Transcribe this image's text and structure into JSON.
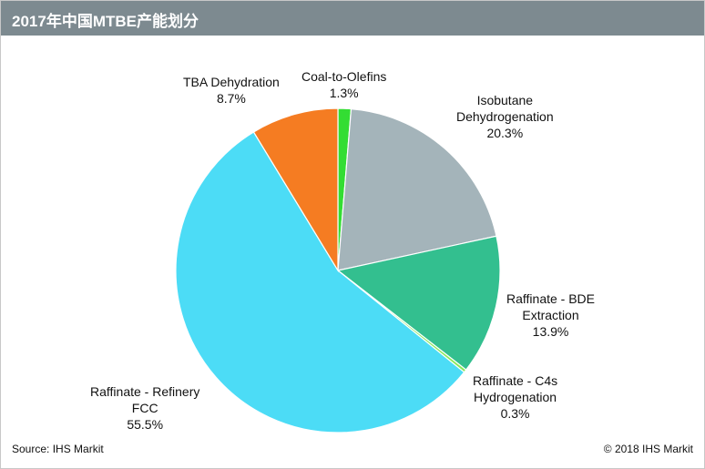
{
  "title": "2017年中国MTBE产能划分",
  "source": "Source: IHS Markit",
  "copyright": "© 2018 IHS Markit",
  "chart_data": {
    "type": "pie",
    "start_angle_deg": 0,
    "direction": "clockwise",
    "slices": [
      {
        "name": "Coal-to-Olefins",
        "value": 1.3,
        "value_label": "1.3%",
        "color": "#33dd33"
      },
      {
        "name": "Isobutane Dehydrogenation",
        "value": 20.3,
        "value_label": "20.3%",
        "color": "#a4b4ba"
      },
      {
        "name": "Raffinate - BDE Extraction",
        "value": 13.9,
        "value_label": "13.9%",
        "color": "#33bf8f"
      },
      {
        "name": "Raffinate - C4s Hydrogenation",
        "value": 0.3,
        "value_label": "0.3%",
        "color": "#88e85a"
      },
      {
        "name": "Raffinate - Refinery FCC",
        "value": 55.5,
        "value_label": "55.5%",
        "color": "#4cdcf6"
      },
      {
        "name": "TBA Dehydration",
        "value": 8.7,
        "value_label": "8.7%",
        "color": "#f57c22"
      }
    ]
  }
}
